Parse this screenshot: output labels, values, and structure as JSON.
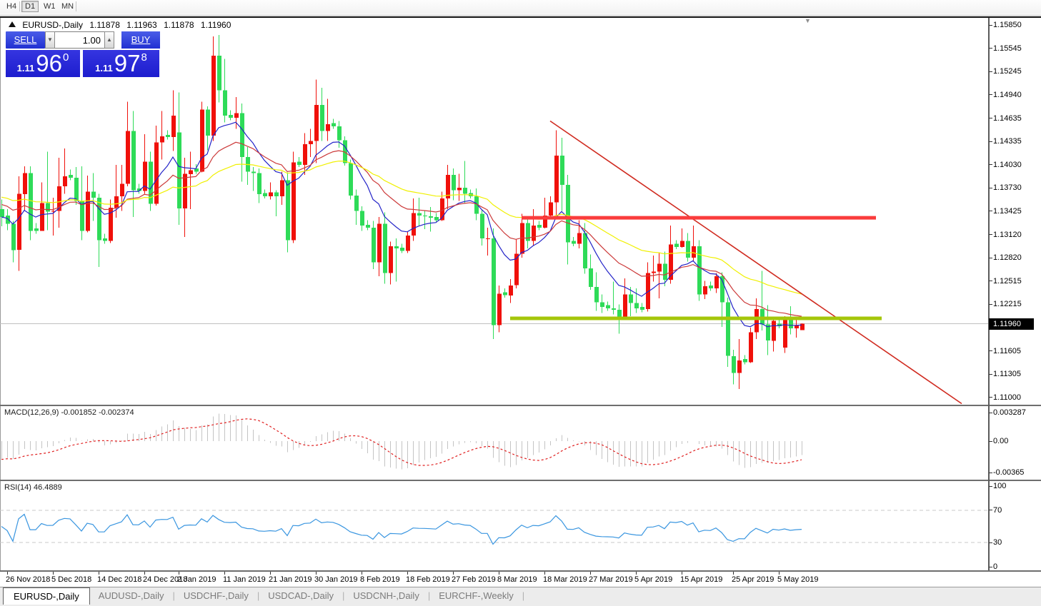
{
  "toolbar": {
    "timeframes": [
      {
        "label": "H4",
        "active": false
      },
      {
        "label": "D1",
        "active": true
      },
      {
        "label": "W1",
        "active": false
      },
      {
        "label": "MN",
        "active": false
      }
    ]
  },
  "chart_header": {
    "title": "EURUSD-,Daily",
    "open": "1.11878",
    "high": "1.11963",
    "low": "1.11878",
    "close": "1.11960"
  },
  "trade_panel": {
    "sell_label": "SELL",
    "buy_label": "BUY",
    "volume": "1.00",
    "sell_price": {
      "prefix": "1.11",
      "big": "96",
      "sup": "0"
    },
    "buy_price": {
      "prefix": "1.11",
      "big": "97",
      "sup": "8"
    }
  },
  "price_axis": {
    "labels": [
      "1.15850",
      "1.15545",
      "1.15245",
      "1.14940",
      "1.14635",
      "1.14335",
      "1.14030",
      "1.13730",
      "1.13425",
      "1.13120",
      "1.12820",
      "1.12515",
      "1.12215",
      "1.11910",
      "1.11605",
      "1.11305",
      "1.11000"
    ],
    "current_price": "1.11960"
  },
  "macd_panel": {
    "label": "MACD(12,26,9) -0.001852 -0.002374",
    "params": {
      "fast": 12,
      "slow": 26,
      "signal": 9
    },
    "values": {
      "macd": "-0.001852",
      "signal": "-0.002374"
    },
    "axis_labels": [
      {
        "text": "0.003287",
        "value": 0.003287
      },
      {
        "text": "0.00",
        "value": 0
      },
      {
        "text": "-0.00365",
        "value": -0.00365
      }
    ]
  },
  "rsi_panel": {
    "label": "RSI(14) 46.4889",
    "period": 14,
    "value": "46.4889",
    "axis_labels": [
      {
        "text": "100",
        "value": 100
      },
      {
        "text": "70",
        "value": 70
      },
      {
        "text": "30",
        "value": 30
      },
      {
        "text": "0",
        "value": 0
      }
    ],
    "level_lines": [
      70,
      30
    ]
  },
  "date_axis": [
    {
      "text": "26 Nov 2018",
      "index": 1
    },
    {
      "text": "5 Dec 2018",
      "index": 9
    },
    {
      "text": "14 Dec 2018",
      "index": 17
    },
    {
      "text": "24 Dec 2018",
      "index": 25
    },
    {
      "text": "2 Jan 2019",
      "index": 31
    },
    {
      "text": "11 Jan 2019",
      "index": 39
    },
    {
      "text": "21 Jan 2019",
      "index": 47
    },
    {
      "text": "30 Jan 2019",
      "index": 55
    },
    {
      "text": "8 Feb 2019",
      "index": 63
    },
    {
      "text": "18 Feb 2019",
      "index": 71
    },
    {
      "text": "27 Feb 2019",
      "index": 79
    },
    {
      "text": "8 Mar 2019",
      "index": 87
    },
    {
      "text": "18 Mar 2019",
      "index": 95
    },
    {
      "text": "27 Mar 2019",
      "index": 103
    },
    {
      "text": "5 Apr 2019",
      "index": 111
    },
    {
      "text": "15 Apr 2019",
      "index": 119
    },
    {
      "text": "25 Apr 2019",
      "index": 128
    },
    {
      "text": "5 May 2019",
      "index": 136
    }
  ],
  "tabs": [
    {
      "label": "EURUSD-,Daily",
      "active": true
    },
    {
      "label": "AUDUSD-,Daily",
      "active": false
    },
    {
      "label": "USDCHF-,Daily",
      "active": false
    },
    {
      "label": "USDCAD-,Daily",
      "active": false
    },
    {
      "label": "USDCNH-,Daily",
      "active": false
    },
    {
      "label": "EURCHF-,Weekly",
      "active": false
    }
  ],
  "chart_data": {
    "type": "candlestick",
    "symbol": "EURUSD-",
    "timeframe": "Daily",
    "price_axis_top": 1.1585,
    "price_axis_bottom": 1.11,
    "colors": {
      "bull": "#F0100A",
      "bear": "#2EDB58",
      "ma_fast": "#2424C8",
      "ma_mid": "#CC3A3A",
      "ma_slow": "#F0F000",
      "macd_hist": "#C4C4C4",
      "macd_signal": "#E02020",
      "rsi": "#3A96E0",
      "bid_line": "#C0C0C0",
      "trendline": "#D02B20",
      "resistance": "#FA3C3C",
      "support": "#A4C60B"
    },
    "moving_averages": [
      {
        "type": "ema",
        "period": 10,
        "color_key": "ma_fast"
      },
      {
        "type": "ema",
        "period": 21,
        "color_key": "ma_mid"
      },
      {
        "type": "ema",
        "period": 45,
        "color_key": "ma_slow"
      }
    ],
    "objects": {
      "trendline": {
        "from_index": 96,
        "from_price": 1.146,
        "to_index": 168,
        "to_price": 1.1092
      },
      "resistance_line": {
        "price": 1.1334,
        "from_index": 91,
        "to_index": 153
      },
      "support_line": {
        "price": 1.1203,
        "from_index": 89,
        "to_index": 154
      },
      "bid_line_price": 1.1196
    },
    "candles": [
      [
        1.1345,
        1.1358,
        1.1323,
        1.1335
      ],
      [
        1.1337,
        1.1345,
        1.1318,
        1.1326
      ],
      [
        1.1326,
        1.133,
        1.1276,
        1.1292
      ],
      [
        1.1292,
        1.1388,
        1.1265,
        1.1365
      ],
      [
        1.1365,
        1.1401,
        1.1344,
        1.1392
      ],
      [
        1.1392,
        1.1401,
        1.1305,
        1.1317
      ],
      [
        1.132,
        1.1327,
        1.1313,
        1.1317
      ],
      [
        1.1317,
        1.138,
        1.1317,
        1.1353
      ],
      [
        1.1353,
        1.142,
        1.1318,
        1.1342
      ],
      [
        1.1342,
        1.136,
        1.1311,
        1.1343
      ],
      [
        1.1343,
        1.1412,
        1.1321,
        1.1375
      ],
      [
        1.1375,
        1.1424,
        1.1365,
        1.1388
      ],
      [
        1.139,
        1.1397,
        1.1383,
        1.1386
      ],
      [
        1.1386,
        1.14,
        1.1351,
        1.1356
      ],
      [
        1.1356,
        1.1401,
        1.1305,
        1.1317
      ],
      [
        1.1317,
        1.1389,
        1.1315,
        1.1368
      ],
      [
        1.1368,
        1.1392,
        1.133,
        1.136
      ],
      [
        1.136,
        1.1365,
        1.127,
        1.1305
      ],
      [
        1.1307,
        1.1313,
        1.13,
        1.1304
      ],
      [
        1.1304,
        1.1358,
        1.1301,
        1.1347
      ],
      [
        1.1347,
        1.1403,
        1.1334,
        1.1362
      ],
      [
        1.1362,
        1.1403,
        1.1343,
        1.1378
      ],
      [
        1.1378,
        1.1485,
        1.1375,
        1.1447
      ],
      [
        1.1447,
        1.1473,
        1.1335,
        1.137
      ],
      [
        1.1372,
        1.1378,
        1.1365,
        1.1369
      ],
      [
        1.1369,
        1.1443,
        1.1365,
        1.1407
      ],
      [
        1.1407,
        1.142,
        1.1343,
        1.1352
      ],
      [
        1.1352,
        1.1454,
        1.135,
        1.1432
      ],
      [
        1.1432,
        1.1473,
        1.141,
        1.144
      ],
      [
        1.1442,
        1.1448,
        1.1436,
        1.1439
      ],
      [
        1.1439,
        1.15,
        1.1421,
        1.1467
      ],
      [
        1.1445,
        1.1497,
        1.1325,
        1.1346
      ],
      [
        1.1346,
        1.1412,
        1.1309,
        1.1391
      ],
      [
        1.1391,
        1.142,
        1.1345,
        1.1396
      ],
      [
        1.1398,
        1.1404,
        1.1391,
        1.1394
      ],
      [
        1.1394,
        1.1485,
        1.1393,
        1.1475
      ],
      [
        1.1475,
        1.1479,
        1.1422,
        1.1441
      ],
      [
        1.1441,
        1.157,
        1.1434,
        1.1545
      ],
      [
        1.1545,
        1.1572,
        1.1484,
        1.15
      ],
      [
        1.15,
        1.1541,
        1.1458,
        1.1467
      ],
      [
        1.1468,
        1.1474,
        1.1461,
        1.1464
      ],
      [
        1.1464,
        1.1491,
        1.145,
        1.147
      ],
      [
        1.147,
        1.1483,
        1.1381,
        1.1413
      ],
      [
        1.1413,
        1.1426,
        1.1377,
        1.1394
      ],
      [
        1.1394,
        1.14,
        1.1369,
        1.1392
      ],
      [
        1.1392,
        1.1398,
        1.1353,
        1.1365
      ],
      [
        1.1366,
        1.1371,
        1.1359,
        1.1362
      ],
      [
        1.1362,
        1.138,
        1.1358,
        1.1367
      ],
      [
        1.1367,
        1.137,
        1.1336,
        1.1362
      ],
      [
        1.1362,
        1.1394,
        1.1351,
        1.1383
      ],
      [
        1.1383,
        1.1393,
        1.1289,
        1.1305
      ],
      [
        1.1305,
        1.142,
        1.1301,
        1.1406
      ],
      [
        1.1407,
        1.1413,
        1.14,
        1.1403
      ],
      [
        1.1403,
        1.1444,
        1.139,
        1.143
      ],
      [
        1.143,
        1.145,
        1.1413,
        1.1434
      ],
      [
        1.1434,
        1.1514,
        1.1405,
        1.1481
      ],
      [
        1.1481,
        1.1503,
        1.1434,
        1.1447
      ],
      [
        1.1447,
        1.1489,
        1.1434,
        1.1456
      ],
      [
        1.1457,
        1.1463,
        1.145,
        1.1453
      ],
      [
        1.1453,
        1.146,
        1.1425,
        1.1435
      ],
      [
        1.1435,
        1.144,
        1.1402,
        1.1405
      ],
      [
        1.1405,
        1.141,
        1.1358,
        1.1363
      ],
      [
        1.1363,
        1.1371,
        1.1325,
        1.1343
      ],
      [
        1.1343,
        1.1349,
        1.1317,
        1.1324
      ],
      [
        1.1325,
        1.1331,
        1.1318,
        1.1321
      ],
      [
        1.1321,
        1.133,
        1.1267,
        1.1276
      ],
      [
        1.1276,
        1.1335,
        1.1258,
        1.1326
      ],
      [
        1.1326,
        1.1341,
        1.1248,
        1.1262
      ],
      [
        1.1262,
        1.1303,
        1.1247,
        1.1297
      ],
      [
        1.1297,
        1.1307,
        1.1251,
        1.1294
      ],
      [
        1.1295,
        1.13,
        1.1288,
        1.1291
      ],
      [
        1.1291,
        1.1316,
        1.1288,
        1.1311
      ],
      [
        1.1311,
        1.1359,
        1.1304,
        1.134
      ],
      [
        1.134,
        1.136,
        1.1324,
        1.1337
      ],
      [
        1.1337,
        1.1344,
        1.1319,
        1.1336
      ],
      [
        1.1336,
        1.1348,
        1.1316,
        1.1334
      ],
      [
        1.1335,
        1.134,
        1.1328,
        1.1331
      ],
      [
        1.1331,
        1.1368,
        1.133,
        1.1359
      ],
      [
        1.1359,
        1.1403,
        1.1345,
        1.139
      ],
      [
        1.139,
        1.1398,
        1.1357,
        1.137
      ],
      [
        1.137,
        1.1391,
        1.1356,
        1.1373
      ],
      [
        1.1373,
        1.1408,
        1.1352,
        1.1365
      ],
      [
        1.1366,
        1.1371,
        1.1359,
        1.1362
      ],
      [
        1.1362,
        1.1372,
        1.1331,
        1.1339
      ],
      [
        1.1339,
        1.1344,
        1.1298,
        1.1307
      ],
      [
        1.1307,
        1.1321,
        1.1285,
        1.1307
      ],
      [
        1.1307,
        1.132,
        1.1176,
        1.1194
      ],
      [
        1.1194,
        1.1246,
        1.1185,
        1.1235
      ],
      [
        1.1237,
        1.1242,
        1.123,
        1.1233
      ],
      [
        1.1233,
        1.1254,
        1.1223,
        1.1246
      ],
      [
        1.1246,
        1.1306,
        1.1242,
        1.1287
      ],
      [
        1.1287,
        1.1339,
        1.1282,
        1.1327
      ],
      [
        1.1327,
        1.1335,
        1.1294,
        1.1304
      ],
      [
        1.1304,
        1.1345,
        1.1298,
        1.1324
      ],
      [
        1.1325,
        1.133,
        1.1318,
        1.1321
      ],
      [
        1.1321,
        1.136,
        1.132,
        1.1337
      ],
      [
        1.1337,
        1.1362,
        1.1333,
        1.1354
      ],
      [
        1.1354,
        1.1448,
        1.1337,
        1.1415
      ],
      [
        1.1415,
        1.1438,
        1.1343,
        1.1377
      ],
      [
        1.1377,
        1.139,
        1.1273,
        1.1302
      ],
      [
        1.1304,
        1.1309,
        1.1297,
        1.13
      ],
      [
        1.13,
        1.1331,
        1.1294,
        1.1314
      ],
      [
        1.1314,
        1.1327,
        1.1261,
        1.1268
      ],
      [
        1.1268,
        1.1286,
        1.124,
        1.1244
      ],
      [
        1.1244,
        1.1263,
        1.1213,
        1.1224
      ],
      [
        1.1224,
        1.1234,
        1.121,
        1.1218
      ],
      [
        1.122,
        1.1225,
        1.1213,
        1.1216
      ],
      [
        1.1216,
        1.1251,
        1.1208,
        1.1214
      ],
      [
        1.1214,
        1.1221,
        1.1183,
        1.1204
      ],
      [
        1.1204,
        1.1255,
        1.1201,
        1.1234
      ],
      [
        1.1234,
        1.1244,
        1.1206,
        1.1223
      ],
      [
        1.1223,
        1.1242,
        1.121,
        1.1216
      ],
      [
        1.1218,
        1.1223,
        1.1211,
        1.1214
      ],
      [
        1.1215,
        1.1276,
        1.1212,
        1.1262
      ],
      [
        1.1262,
        1.1285,
        1.1251,
        1.1264
      ],
      [
        1.1264,
        1.1288,
        1.1229,
        1.1274
      ],
      [
        1.1274,
        1.129,
        1.1245,
        1.1253
      ],
      [
        1.1253,
        1.1324,
        1.1248,
        1.1299
      ],
      [
        1.13,
        1.1305,
        1.1293,
        1.1296
      ],
      [
        1.1296,
        1.132,
        1.1295,
        1.1304
      ],
      [
        1.1304,
        1.1314,
        1.1277,
        1.1282
      ],
      [
        1.1282,
        1.1324,
        1.1278,
        1.1297
      ],
      [
        1.1297,
        1.1305,
        1.1226,
        1.1234
      ],
      [
        1.1234,
        1.1252,
        1.1228,
        1.1245
      ],
      [
        1.1246,
        1.1251,
        1.1239,
        1.1242
      ],
      [
        1.1242,
        1.1262,
        1.1236,
        1.1258
      ],
      [
        1.1258,
        1.1263,
        1.1192,
        1.1224
      ],
      [
        1.1224,
        1.123,
        1.114,
        1.1154
      ],
      [
        1.1154,
        1.1162,
        1.1117,
        1.1132
      ],
      [
        1.1132,
        1.1176,
        1.1111,
        1.1148
      ],
      [
        1.115,
        1.1155,
        1.1143,
        1.1146
      ],
      [
        1.1146,
        1.1191,
        1.1145,
        1.1185
      ],
      [
        1.1185,
        1.1229,
        1.1176,
        1.1215
      ],
      [
        1.1215,
        1.1265,
        1.1187,
        1.1195
      ],
      [
        1.1195,
        1.122,
        1.1155,
        1.1174
      ],
      [
        1.1174,
        1.1205,
        1.116,
        1.12
      ],
      [
        1.1196,
        1.1202,
        1.119,
        1.1193
      ],
      [
        1.1165,
        1.1206,
        1.1158,
        1.1201
      ],
      [
        1.1201,
        1.1219,
        1.1182,
        1.119
      ],
      [
        1.119,
        1.1202,
        1.1178,
        1.1194
      ],
      [
        1.11878,
        1.11963,
        1.11878,
        1.1196
      ]
    ]
  }
}
